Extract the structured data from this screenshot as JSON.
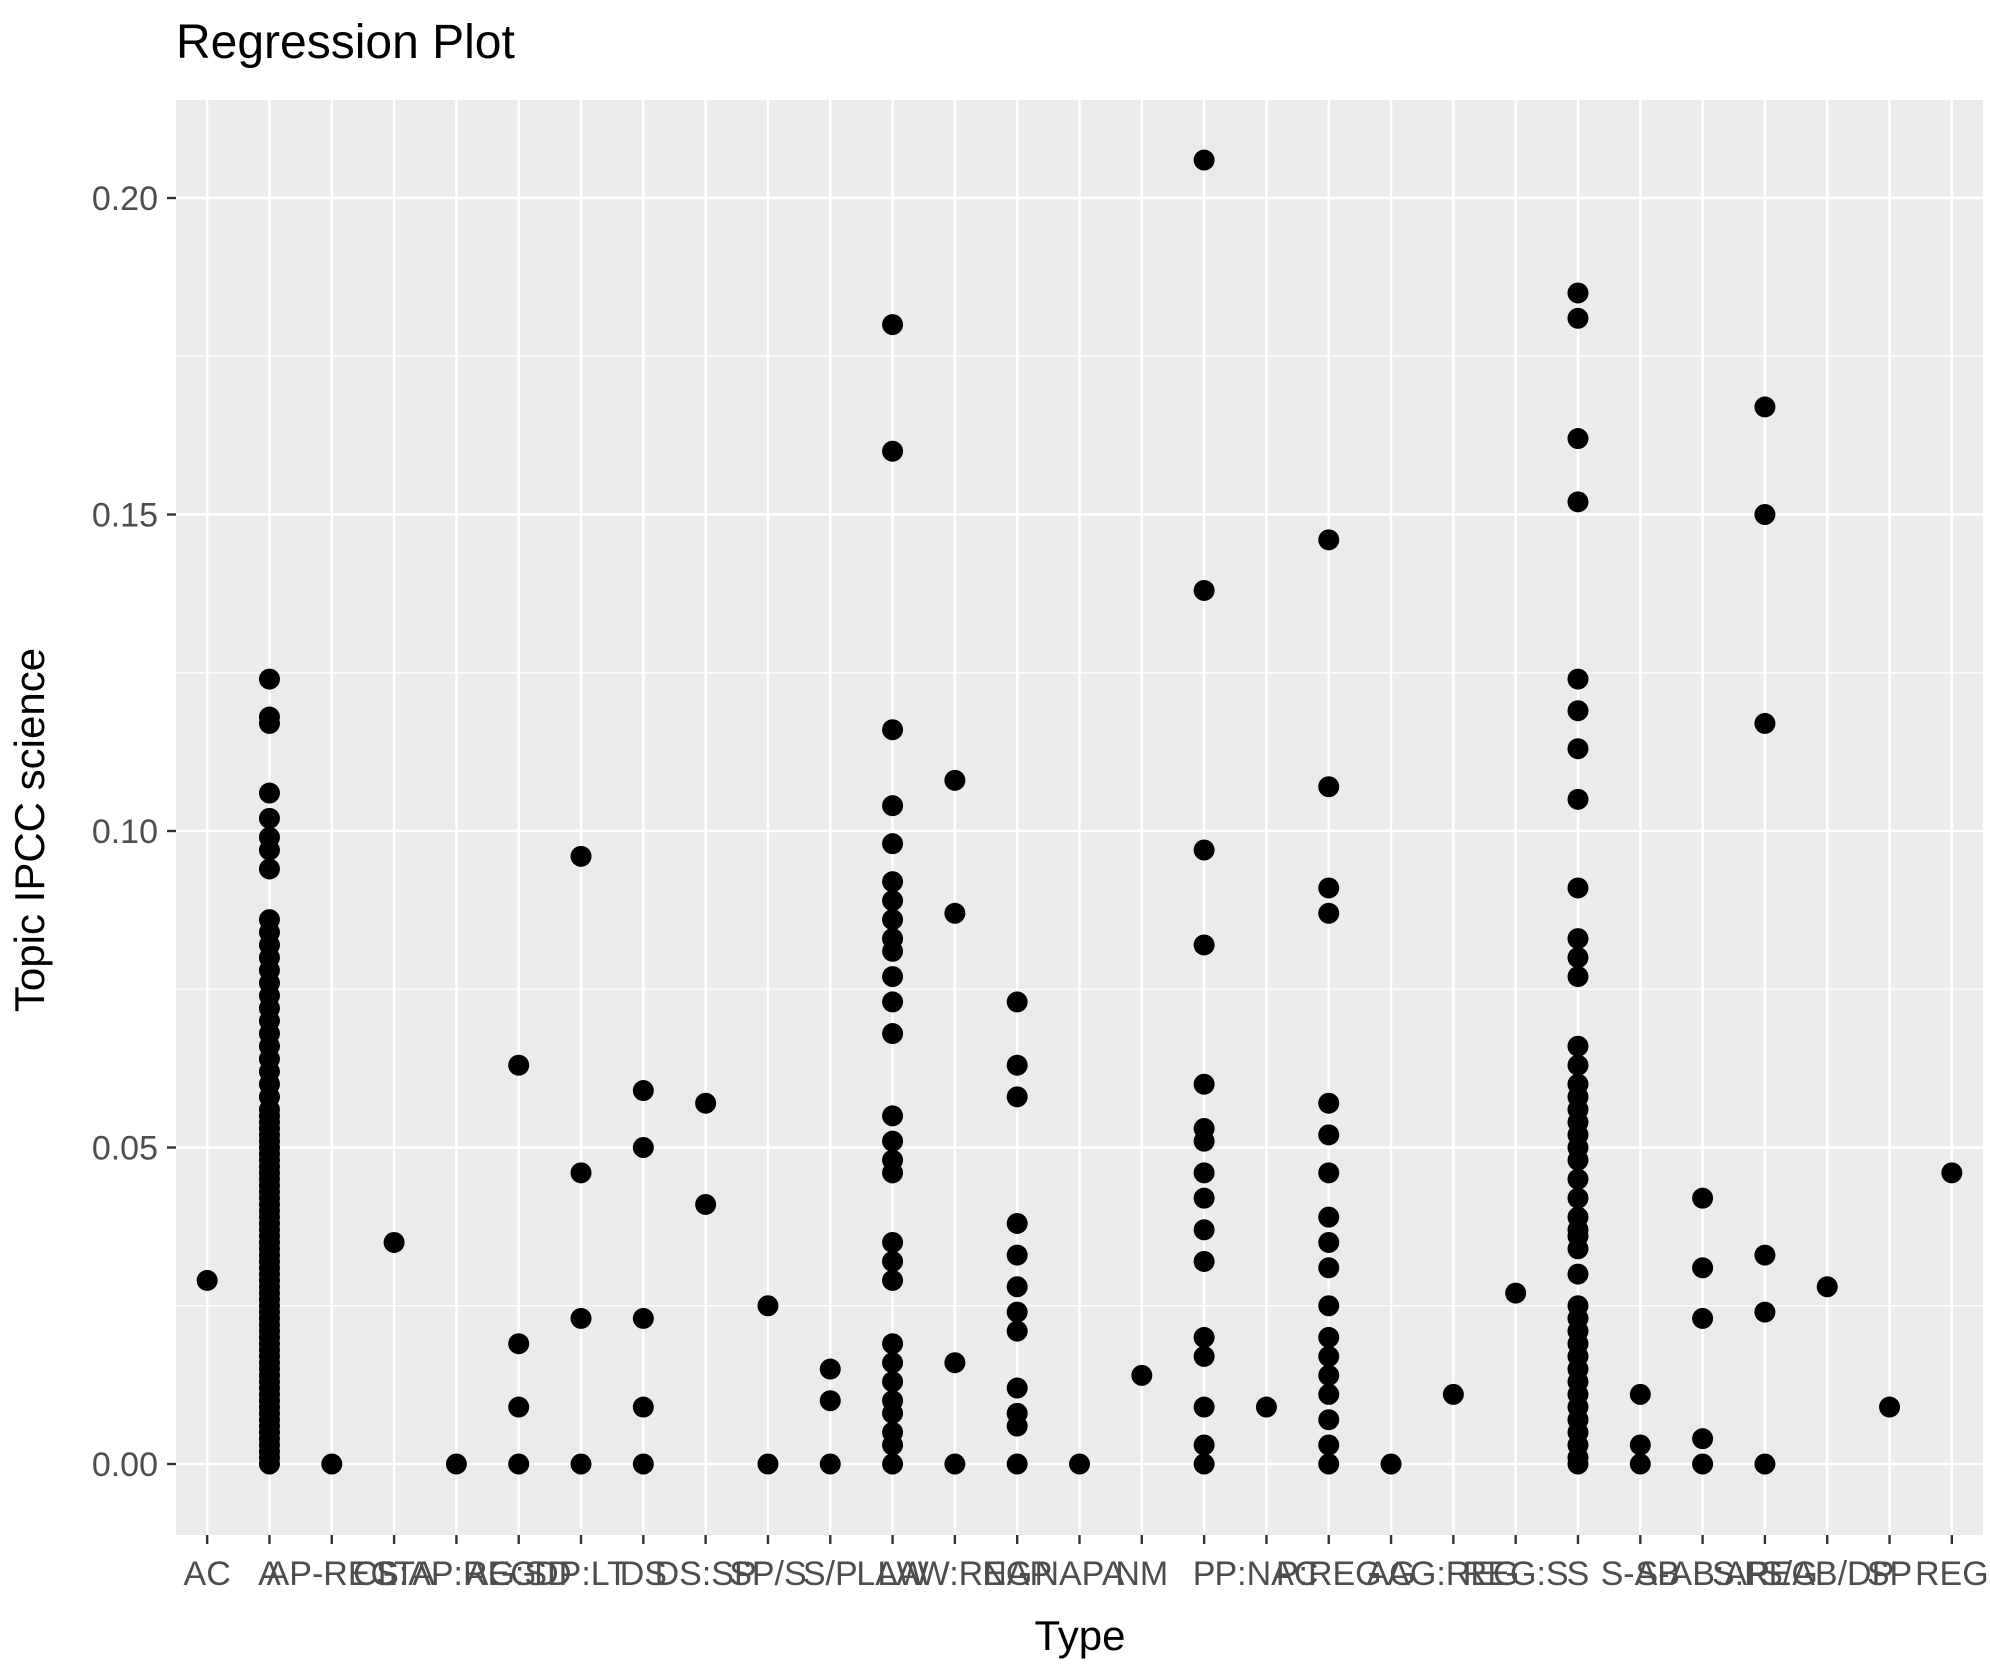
{
  "title": "Regression Plot",
  "axes": {
    "x_title": "Type",
    "y_title": "Topic IPCC science",
    "y_ticks": [
      {
        "label": "0.00",
        "value": 0.0
      },
      {
        "label": "0.05",
        "value": 0.05
      },
      {
        "label": "0.10",
        "value": 0.1
      },
      {
        "label": "0.15",
        "value": 0.15
      },
      {
        "label": "0.20",
        "value": 0.2
      }
    ]
  },
  "colors": {
    "page_bg": "#FFFFFF",
    "panel_bg": "#EBEBEB",
    "grid": "#FFFFFF",
    "point": "#000000",
    "axis_text": "#4D4D4D",
    "tick_mark": "#333333",
    "title_text": "#000000"
  },
  "chart_data": {
    "type": "scatter",
    "title": "Regression Plot",
    "xlabel": "Type",
    "ylabel": "Topic IPCC science",
    "ylim": [
      -0.011,
      0.215
    ],
    "y_minor_gridlines": [
      0.025,
      0.075,
      0.125,
      0.175
    ],
    "grid": "on",
    "legend": "none",
    "categories": [
      "AC",
      "A",
      "AP-REG",
      "CLTA",
      "S:AP:REG",
      "AG:SD",
      "DP:LT",
      "DS",
      "DS:SP",
      "SP/S",
      "S/P",
      "LAW",
      "LAW:REG",
      "NAP",
      "NAPA",
      "NM",
      "P",
      "P:NAC",
      "P:REG",
      "AG",
      "AG:REG",
      "REG:S",
      "S",
      "S-AB",
      "S-AB:AP",
      "S:REG",
      "S/AB/DP",
      "SP",
      "REG"
    ],
    "series": [
      {
        "type": "AC",
        "values": [
          0.029
        ]
      },
      {
        "type": "A",
        "values": [
          0.124,
          0.118,
          0.117,
          0.106,
          0.102,
          0.099,
          0.097,
          0.094,
          0.086,
          0.084,
          0.082,
          0.08,
          0.078,
          0.076,
          0.074,
          0.072,
          0.07,
          0.068,
          0.066,
          0.064,
          0.062,
          0.06,
          0.058,
          0.056,
          0.055,
          0.054,
          0.053,
          0.052,
          0.051,
          0.05,
          0.049,
          0.048,
          0.047,
          0.046,
          0.045,
          0.044,
          0.043,
          0.042,
          0.041,
          0.04,
          0.039,
          0.038,
          0.037,
          0.036,
          0.035,
          0.034,
          0.033,
          0.032,
          0.031,
          0.03,
          0.029,
          0.028,
          0.027,
          0.026,
          0.025,
          0.024,
          0.023,
          0.022,
          0.021,
          0.02,
          0.019,
          0.018,
          0.017,
          0.016,
          0.015,
          0.014,
          0.013,
          0.012,
          0.011,
          0.01,
          0.009,
          0.008,
          0.007,
          0.006,
          0.005,
          0.004,
          0.003,
          0.002,
          0.001,
          0
        ]
      },
      {
        "type": "AP-REG",
        "values": [
          0
        ]
      },
      {
        "type": "CLTA",
        "values": [
          0.035
        ]
      },
      {
        "type": "S:AP:REG",
        "values": [
          0
        ]
      },
      {
        "type": "AG:SD",
        "values": [
          0.063,
          0.019,
          0.009,
          0
        ]
      },
      {
        "type": "DP:LT",
        "values": [
          0.096,
          0.046,
          0.023,
          0
        ]
      },
      {
        "type": "DS",
        "values": [
          0.059,
          0.05,
          0.023,
          0.009,
          0
        ]
      },
      {
        "type": "DS:SP",
        "values": [
          0.057,
          0.041
        ]
      },
      {
        "type": "SP/S",
        "values": [
          0.025,
          0
        ]
      },
      {
        "type": "S/P",
        "values": [
          0.015,
          0.01,
          0
        ]
      },
      {
        "type": "LAW",
        "values": [
          0.18,
          0.16,
          0.116,
          0.104,
          0.098,
          0.092,
          0.089,
          0.086,
          0.083,
          0.081,
          0.077,
          0.073,
          0.068,
          0.055,
          0.051,
          0.048,
          0.046,
          0.035,
          0.032,
          0.029,
          0.019,
          0.016,
          0.013,
          0.01,
          0.008,
          0.005,
          0.003,
          0
        ]
      },
      {
        "type": "LAW:REG",
        "values": [
          0.108,
          0.087,
          0.016,
          0
        ]
      },
      {
        "type": "NAP",
        "values": [
          0.073,
          0.063,
          0.058,
          0.038,
          0.033,
          0.028,
          0.024,
          0.021,
          0.012,
          0.008,
          0.006,
          0
        ]
      },
      {
        "type": "NAPA",
        "values": [
          0
        ]
      },
      {
        "type": "NM",
        "values": [
          0.014
        ]
      },
      {
        "type": "P",
        "values": [
          0.206,
          0.138,
          0.097,
          0.082,
          0.06,
          0.053,
          0.051,
          0.046,
          0.042,
          0.037,
          0.032,
          0.02,
          0.017,
          0.009,
          0.003,
          0
        ]
      },
      {
        "type": "P:NAC",
        "values": [
          0.009
        ]
      },
      {
        "type": "P:REG",
        "values": [
          0.146,
          0.107,
          0.091,
          0.087,
          0.057,
          0.052,
          0.046,
          0.039,
          0.035,
          0.031,
          0.025,
          0.02,
          0.017,
          0.014,
          0.011,
          0.007,
          0.003,
          0
        ]
      },
      {
        "type": "AG",
        "values": [
          0
        ]
      },
      {
        "type": "AG:REG",
        "values": [
          0.011
        ]
      },
      {
        "type": "REG:S",
        "values": [
          0.027
        ]
      },
      {
        "type": "S",
        "values": [
          0.185,
          0.181,
          0.162,
          0.152,
          0.124,
          0.119,
          0.113,
          0.105,
          0.091,
          0.083,
          0.08,
          0.077,
          0.066,
          0.063,
          0.06,
          0.058,
          0.056,
          0.054,
          0.052,
          0.05,
          0.048,
          0.045,
          0.042,
          0.039,
          0.037,
          0.036,
          0.034,
          0.03,
          0.025,
          0.023,
          0.021,
          0.019,
          0.017,
          0.015,
          0.013,
          0.011,
          0.009,
          0.007,
          0.005,
          0.003,
          0.001,
          0
        ]
      },
      {
        "type": "S-AB",
        "values": [
          0.011,
          0.003,
          0
        ]
      },
      {
        "type": "S-AB:AP",
        "values": [
          0.042,
          0.031,
          0.023,
          0.004,
          0
        ]
      },
      {
        "type": "S:REG",
        "values": [
          0.167,
          0.15,
          0.117,
          0.033,
          0.024,
          0
        ]
      },
      {
        "type": "S/AB/DP",
        "values": [
          0.028
        ]
      },
      {
        "type": "SP",
        "values": [
          0.009
        ]
      },
      {
        "type": "REG",
        "values": [
          0.046
        ]
      }
    ]
  }
}
